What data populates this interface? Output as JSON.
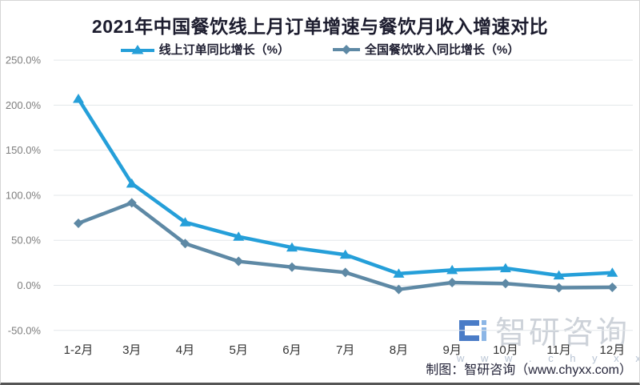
{
  "title": "2021年中国餐饮线上月订单增速与餐饮月收入增速对比",
  "legend": {
    "items": [
      {
        "label": "线上订单同比增长（%）",
        "color": "#259fd9",
        "marker": "triangle"
      },
      {
        "label": "全国餐饮收入同比增长（%）",
        "color": "#5e89a5",
        "marker": "diamond"
      }
    ]
  },
  "chart_data": {
    "type": "line",
    "title": "2021年中国餐饮线上月订单增速与餐饮月收入增速对比",
    "categories": [
      "1-2月",
      "3月",
      "4月",
      "5月",
      "6月",
      "7月",
      "8月",
      "9月",
      "10月",
      "11月",
      "12月"
    ],
    "series": [
      {
        "name": "线上订单同比增长（%）",
        "marker": "triangle",
        "color": "#259fd9",
        "values": [
          207,
          113,
          70,
          54,
          42,
          34,
          13,
          17,
          19,
          11,
          14
        ]
      },
      {
        "name": "全国餐饮收入同比增长（%）",
        "marker": "diamond",
        "color": "#5e89a5",
        "values": [
          68.9,
          91.6,
          46.4,
          26.6,
          20.2,
          14.3,
          -4.5,
          3.1,
          2.0,
          -2.7,
          -2.2
        ]
      }
    ],
    "y_tick_labels": [
      "250.0%",
      "200.0%",
      "150.0%",
      "100.0%",
      "50.0%",
      "0.0%",
      "-50.0%"
    ],
    "y_tick_values": [
      250,
      200,
      150,
      100,
      50,
      0,
      -50
    ],
    "ylim": [
      -50,
      250
    ],
    "xlabel": "",
    "ylabel": "",
    "grid": "horizontal-only",
    "legend_position": "top-center",
    "colors": {
      "grid": "#e3e7ea",
      "y_tick_text": "#7d7d7d",
      "x_tick_text": "#333333"
    }
  },
  "watermark": {
    "brand": "智研咨询",
    "url": "w w w . c h y x x . c o m",
    "brand_color": "#cdd2d9",
    "url_color": "#b7c3d3",
    "logo_blue": "#4a7cc7",
    "logo_light_blue": "#8cb6e6"
  },
  "footer": {
    "credit": "制图：智研咨询（www.chyxx.com）"
  }
}
